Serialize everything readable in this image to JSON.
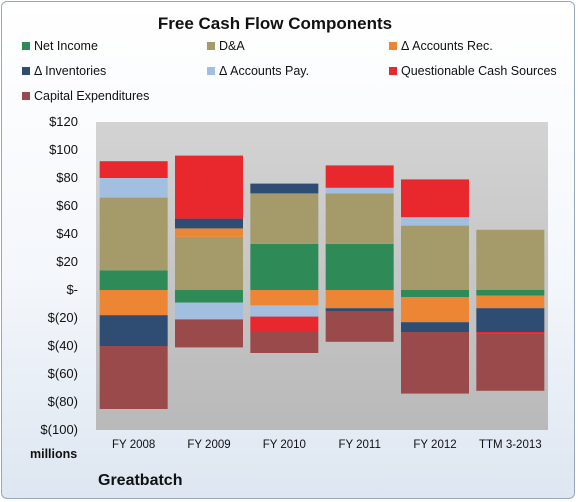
{
  "chart_data": {
    "type": "bar",
    "stacked": true,
    "title": "Free Cash Flow Components",
    "ylabel": "millions",
    "ylim": [
      -100,
      120
    ],
    "yticks": [
      -100,
      -80,
      -60,
      -40,
      -20,
      0,
      20,
      40,
      60,
      80,
      100,
      120
    ],
    "ytick_labels": [
      "$(100)",
      "$(80)",
      "$(60)",
      "$(40)",
      "$(20)",
      "$-",
      "$20",
      "$40",
      "$60",
      "$80",
      "$100",
      "$120"
    ],
    "categories": [
      "FY 2008",
      "FY 2009",
      "FY 2010",
      "FY 2011",
      "FY 2012",
      "TTM 3-2013"
    ],
    "legend_position": "top",
    "grid": false,
    "series": [
      {
        "name": "Net Income",
        "color": "#2e8b57",
        "values": [
          14,
          -9,
          33,
          33,
          -5,
          -4
        ]
      },
      {
        "name": "D&A",
        "color": "#a59b6a",
        "values": [
          52,
          38,
          36,
          36,
          46,
          43
        ]
      },
      {
        "name": "Δ Accounts Rec.",
        "color": "#ec8634",
        "values": [
          -18,
          6,
          -11,
          -13,
          -18,
          -9
        ]
      },
      {
        "name": "Δ Inventories",
        "color": "#2f4d72",
        "values": [
          -22,
          7,
          7,
          -2,
          -7,
          -17
        ]
      },
      {
        "name": "Δ Accounts Pay.",
        "color": "#a3bfdf",
        "values": [
          14,
          -12,
          -8,
          4,
          6,
          0
        ]
      },
      {
        "name": "Questionable Cash Sources",
        "color": "#e8282d",
        "values": [
          12,
          45,
          -11,
          16,
          27,
          -1
        ]
      },
      {
        "name": "Capital Expenditures",
        "color": "#9b4a4c",
        "values": [
          -45,
          -20,
          -15,
          -22,
          -44,
          -41
        ]
      }
    ]
  },
  "company": "Greatbatch"
}
